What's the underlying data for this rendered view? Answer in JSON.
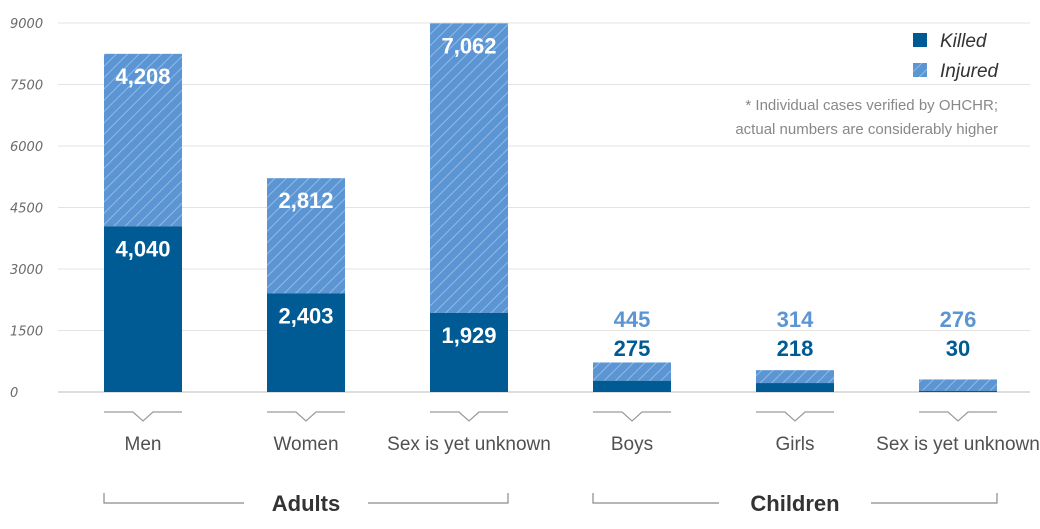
{
  "chart_data": {
    "type": "bar",
    "stacked": true,
    "categories": [
      "Men",
      "Women",
      "Sex is yet unknown",
      "Boys",
      "Girls",
      "Sex is yet unknown"
    ],
    "groups": [
      {
        "label": "Adults",
        "categories": [
          0,
          1,
          2
        ]
      },
      {
        "label": "Children",
        "categories": [
          3,
          4,
          5
        ]
      }
    ],
    "series": [
      {
        "name": "Killed",
        "values": [
          4040,
          2403,
          1929,
          275,
          218,
          30
        ],
        "labels": [
          "4,040",
          "2,403",
          "1,929",
          "275",
          "218",
          "30"
        ]
      },
      {
        "name": "Injured",
        "values": [
          4208,
          2812,
          7062,
          445,
          314,
          276
        ],
        "labels": [
          "4,208",
          "2,812",
          "7,062",
          "445",
          "314",
          "276"
        ]
      }
    ],
    "yticks": [
      "0",
      "1500",
      "3000",
      "4500",
      "6000",
      "7500",
      "9000"
    ],
    "ylim": [
      0,
      9000
    ],
    "grid": true,
    "legend": "top-right",
    "note": [
      "* Individual cases verified by OHCHR;",
      "actual numbers are considerably higher"
    ],
    "colors": {
      "Killed": "#005b94",
      "Injured": "#5b95d3",
      "Injured_hatch": "#9fc3ea"
    }
  }
}
